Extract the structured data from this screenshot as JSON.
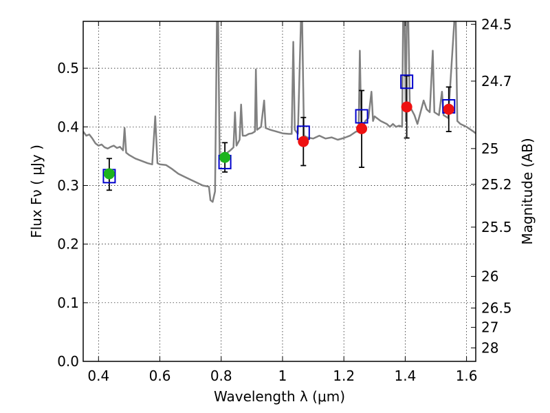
{
  "chart_data": {
    "type": "scatter",
    "xlabel": "Wavelength  λ (μm)",
    "ylabel": "Flux  Fν  ( μJy )",
    "ylabel_right": "Magnitude (AB)",
    "xlim": [
      0.35,
      1.63
    ],
    "ylim": [
      0.0,
      0.58
    ],
    "grid": true,
    "x_ticks": [
      0.4,
      0.6,
      0.8,
      1.0,
      1.2,
      1.4,
      1.6
    ],
    "x_tick_labels": [
      "0.4",
      "0.6",
      "0.8",
      "1",
      "1.2",
      "1.4",
      "1.6"
    ],
    "y_ticks": [
      0.0,
      0.1,
      0.2,
      0.3,
      0.4,
      0.5
    ],
    "y_tick_labels": [
      "0.0",
      "0.1",
      "0.2",
      "0.3",
      "0.4",
      "0.5"
    ],
    "right_ticks": [
      {
        "label": "24.5",
        "flux": 0.575
      },
      {
        "label": "24.7",
        "flux": 0.478
      },
      {
        "label": "25",
        "flux": 0.363
      },
      {
        "label": "25.2",
        "flux": 0.302
      },
      {
        "label": "25.5",
        "flux": 0.229
      },
      {
        "label": "26",
        "flux": 0.145
      },
      {
        "label": "26.5",
        "flux": 0.091
      },
      {
        "label": "27",
        "flux": 0.058
      },
      {
        "label": "28",
        "flux": 0.023
      }
    ],
    "colors": {
      "template": "#808080",
      "green_points": "#1db31d",
      "red_points": "#ee1111",
      "model_boxes": "#0000cc",
      "errorbars": "#000000"
    },
    "series": [
      {
        "kind": "line",
        "points": [
          [
            0.35,
            0.392
          ],
          [
            0.36,
            0.385
          ],
          [
            0.37,
            0.387
          ],
          [
            0.38,
            0.38
          ],
          [
            0.39,
            0.372
          ],
          [
            0.4,
            0.368
          ],
          [
            0.41,
            0.37
          ],
          [
            0.42,
            0.365
          ],
          [
            0.43,
            0.363
          ],
          [
            0.44,
            0.366
          ],
          [
            0.45,
            0.368
          ],
          [
            0.46,
            0.364
          ],
          [
            0.47,
            0.366
          ],
          [
            0.48,
            0.36
          ],
          [
            0.485,
            0.398
          ],
          [
            0.49,
            0.356
          ],
          [
            0.5,
            0.352
          ],
          [
            0.52,
            0.346
          ],
          [
            0.54,
            0.342
          ],
          [
            0.56,
            0.338
          ],
          [
            0.575,
            0.336
          ],
          [
            0.585,
            0.418
          ],
          [
            0.592,
            0.338
          ],
          [
            0.6,
            0.336
          ],
          [
            0.62,
            0.335
          ],
          [
            0.64,
            0.328
          ],
          [
            0.66,
            0.32
          ],
          [
            0.68,
            0.315
          ],
          [
            0.7,
            0.31
          ],
          [
            0.72,
            0.305
          ],
          [
            0.74,
            0.3
          ],
          [
            0.76,
            0.298
          ],
          [
            0.765,
            0.275
          ],
          [
            0.772,
            0.272
          ],
          [
            0.78,
            0.29
          ],
          [
            0.786,
            0.58
          ],
          [
            0.79,
            0.58
          ],
          [
            0.795,
            0.346
          ],
          [
            0.8,
            0.345
          ],
          [
            0.81,
            0.352
          ],
          [
            0.82,
            0.356
          ],
          [
            0.83,
            0.36
          ],
          [
            0.84,
            0.365
          ],
          [
            0.845,
            0.425
          ],
          [
            0.85,
            0.368
          ],
          [
            0.86,
            0.378
          ],
          [
            0.865,
            0.438
          ],
          [
            0.87,
            0.385
          ],
          [
            0.88,
            0.385
          ],
          [
            0.89,
            0.388
          ],
          [
            0.9,
            0.389
          ],
          [
            0.91,
            0.392
          ],
          [
            0.913,
            0.498
          ],
          [
            0.917,
            0.395
          ],
          [
            0.93,
            0.4
          ],
          [
            0.94,
            0.445
          ],
          [
            0.945,
            0.398
          ],
          [
            0.96,
            0.395
          ],
          [
            0.98,
            0.392
          ],
          [
            1.0,
            0.389
          ],
          [
            1.02,
            0.388
          ],
          [
            1.03,
            0.388
          ],
          [
            1.035,
            0.545
          ],
          [
            1.04,
            0.395
          ],
          [
            1.05,
            0.388
          ],
          [
            1.06,
            0.58
          ],
          [
            1.064,
            0.58
          ],
          [
            1.07,
            0.385
          ],
          [
            1.08,
            0.382
          ],
          [
            1.1,
            0.38
          ],
          [
            1.12,
            0.385
          ],
          [
            1.14,
            0.38
          ],
          [
            1.16,
            0.382
          ],
          [
            1.18,
            0.378
          ],
          [
            1.2,
            0.381
          ],
          [
            1.22,
            0.385
          ],
          [
            1.24,
            0.392
          ],
          [
            1.248,
            0.392
          ],
          [
            1.252,
            0.53
          ],
          [
            1.257,
            0.392
          ],
          [
            1.27,
            0.41
          ],
          [
            1.28,
            0.415
          ],
          [
            1.29,
            0.46
          ],
          [
            1.295,
            0.41
          ],
          [
            1.3,
            0.418
          ],
          [
            1.32,
            0.41
          ],
          [
            1.34,
            0.405
          ],
          [
            1.35,
            0.4
          ],
          [
            1.36,
            0.405
          ],
          [
            1.37,
            0.4
          ],
          [
            1.38,
            0.402
          ],
          [
            1.39,
            0.4
          ],
          [
            1.393,
            0.58
          ],
          [
            1.398,
            0.58
          ],
          [
            1.402,
            0.41
          ],
          [
            1.405,
            0.58
          ],
          [
            1.41,
            0.58
          ],
          [
            1.415,
            0.435
          ],
          [
            1.43,
            0.42
          ],
          [
            1.44,
            0.405
          ],
          [
            1.46,
            0.445
          ],
          [
            1.47,
            0.43
          ],
          [
            1.48,
            0.425
          ],
          [
            1.49,
            0.53
          ],
          [
            1.495,
            0.425
          ],
          [
            1.51,
            0.42
          ],
          [
            1.52,
            0.46
          ],
          [
            1.525,
            0.42
          ],
          [
            1.54,
            0.415
          ],
          [
            1.56,
            0.58
          ],
          [
            1.565,
            0.58
          ],
          [
            1.57,
            0.41
          ],
          [
            1.58,
            0.405
          ],
          [
            1.6,
            0.4
          ],
          [
            1.62,
            0.393
          ],
          [
            1.63,
            0.389
          ]
        ]
      },
      {
        "kind": "points",
        "marker": "circle",
        "points": [
          {
            "x": 0.435,
            "y": 0.32
          },
          {
            "x": 0.812,
            "y": 0.348
          }
        ]
      },
      {
        "kind": "points",
        "marker": "circle",
        "points": [
          {
            "x": 1.068,
            "y": 0.375
          },
          {
            "x": 1.258,
            "y": 0.397
          },
          {
            "x": 1.405,
            "y": 0.434
          },
          {
            "x": 1.542,
            "y": 0.43
          }
        ]
      },
      {
        "kind": "points",
        "marker": "square",
        "points": [
          {
            "x": 0.435,
            "y": 0.316
          },
          {
            "x": 0.812,
            "y": 0.34
          },
          {
            "x": 1.068,
            "y": 0.39
          },
          {
            "x": 1.258,
            "y": 0.418
          },
          {
            "x": 1.405,
            "y": 0.477
          },
          {
            "x": 1.542,
            "y": 0.435
          }
        ]
      },
      {
        "kind": "errorbars",
        "bars": [
          {
            "x": 0.435,
            "low": 0.292,
            "high": 0.346
          },
          {
            "x": 0.812,
            "low": 0.323,
            "high": 0.373
          },
          {
            "x": 1.068,
            "low": 0.334,
            "high": 0.416
          },
          {
            "x": 1.258,
            "low": 0.331,
            "high": 0.462
          },
          {
            "x": 1.405,
            "low": 0.381,
            "high": 0.487
          },
          {
            "x": 1.542,
            "low": 0.392,
            "high": 0.468
          }
        ]
      }
    ]
  }
}
